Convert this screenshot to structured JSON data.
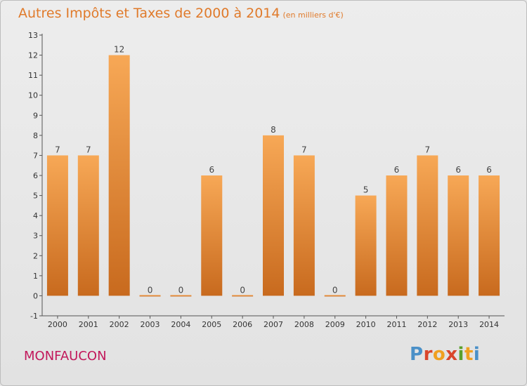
{
  "chart_title": "Autres Impôts et Taxes de 2000 à 2014",
  "chart_unit": "(en milliers d'€)",
  "commune_name": "MONFAUCON",
  "logo": {
    "text": "Proxiti",
    "colors": [
      "#4a90c8",
      "#d9452b",
      "#f0a020",
      "#d9452b",
      "#5aa02c",
      "#f0a020",
      "#4a90c8"
    ]
  },
  "colors": {
    "bar": "#f09a3e",
    "title": "#e07a2a",
    "commune": "#c2185b"
  },
  "chart_data": {
    "type": "bar",
    "title": "Autres Impôts et Taxes de 2000 à 2014",
    "subtitle": "(en milliers d'€)",
    "categories": [
      "2000",
      "2001",
      "2002",
      "2003",
      "2004",
      "2005",
      "2006",
      "2007",
      "2008",
      "2009",
      "2010",
      "2011",
      "2012",
      "2013",
      "2014"
    ],
    "values": [
      7,
      7,
      12,
      0,
      0,
      6,
      0,
      8,
      7,
      0,
      5,
      6,
      7,
      6,
      6
    ],
    "ylim": [
      -1,
      13
    ],
    "yticks": [
      -1,
      0,
      1,
      2,
      3,
      4,
      5,
      6,
      7,
      8,
      9,
      10,
      11,
      12,
      13
    ],
    "grid": false
  }
}
